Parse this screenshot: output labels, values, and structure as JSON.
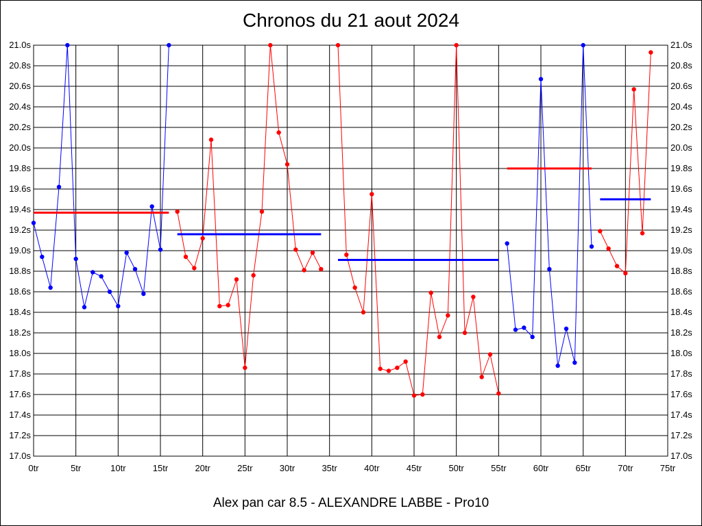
{
  "chart_data": {
    "type": "line",
    "title": "Chronos du 21 aout 2024",
    "subtitle": "Alex pan car 8.5 - ALEXANDRE LABBE - Pro10",
    "xlabel": "",
    "ylabel": "",
    "xlim": [
      0,
      75
    ],
    "ylim": [
      17.0,
      21.0
    ],
    "x_ticks": [
      0,
      5,
      10,
      15,
      20,
      25,
      30,
      35,
      40,
      45,
      50,
      55,
      60,
      65,
      70,
      75
    ],
    "x_tick_suffix": "tr",
    "y_ticks": [
      17.0,
      17.2,
      17.4,
      17.6,
      17.8,
      18.0,
      18.2,
      18.4,
      18.6,
      18.8,
      19.0,
      19.2,
      19.4,
      19.6,
      19.8,
      20.0,
      20.2,
      20.4,
      20.6,
      20.8,
      21.0
    ],
    "y_tick_suffix": "s",
    "grid": true,
    "colors": {
      "blue": "#0000ff",
      "red": "#ff0000",
      "grid": "#000000"
    },
    "series": [
      {
        "color": "#0000ff",
        "x": [
          0,
          1,
          2,
          3,
          4,
          5,
          6,
          7,
          8,
          9,
          10,
          11,
          12,
          13,
          14,
          15,
          16
        ],
        "values": [
          19.27,
          18.94,
          18.64,
          19.62,
          21.0,
          18.92,
          18.45,
          18.79,
          18.75,
          18.6,
          18.46,
          18.98,
          18.82,
          18.58,
          19.43,
          19.01,
          21.0
        ],
        "average": 19.37
      },
      {
        "color": "#ff0000",
        "x": [
          17,
          18,
          19,
          20,
          21,
          22,
          23,
          24,
          25,
          26,
          27,
          28,
          29,
          30,
          31,
          32,
          33,
          34
        ],
        "values": [
          19.38,
          18.94,
          18.83,
          19.12,
          20.08,
          18.46,
          18.47,
          18.72,
          17.86,
          18.76,
          19.38,
          21.0,
          20.15,
          19.84,
          19.01,
          18.81,
          18.98,
          18.82
        ],
        "average": 19.16
      },
      {
        "color": "#ff0000",
        "x": [
          36,
          37,
          38,
          39,
          40,
          41,
          42,
          43,
          44,
          45,
          46,
          47,
          48,
          49,
          50,
          51,
          52,
          53,
          54,
          55
        ],
        "values": [
          21.0,
          18.96,
          18.64,
          18.4,
          19.55,
          17.85,
          17.83,
          17.86,
          17.92,
          17.59,
          17.6,
          18.59,
          18.16,
          18.37,
          21.0,
          18.2,
          18.55,
          17.77,
          17.99,
          17.61
        ],
        "average": 18.91
      },
      {
        "color": "#0000ff",
        "x": [
          56,
          57,
          58,
          59,
          60,
          61,
          62,
          63,
          64,
          65,
          66
        ],
        "values": [
          19.07,
          18.23,
          18.25,
          18.16,
          20.67,
          18.82,
          17.88,
          18.24,
          17.91,
          21.0,
          19.04
        ],
        "average": 19.8
      },
      {
        "color": "#ff0000",
        "x": [
          67,
          68,
          69,
          70,
          71,
          72,
          73
        ],
        "values": [
          19.19,
          19.02,
          18.85,
          18.78,
          20.57,
          19.17,
          20.93
        ],
        "average": 19.5
      }
    ],
    "average_line_colors": [
      "#ff0000",
      "#0000ff",
      "#0000ff",
      "#ff0000",
      "#0000ff"
    ]
  }
}
